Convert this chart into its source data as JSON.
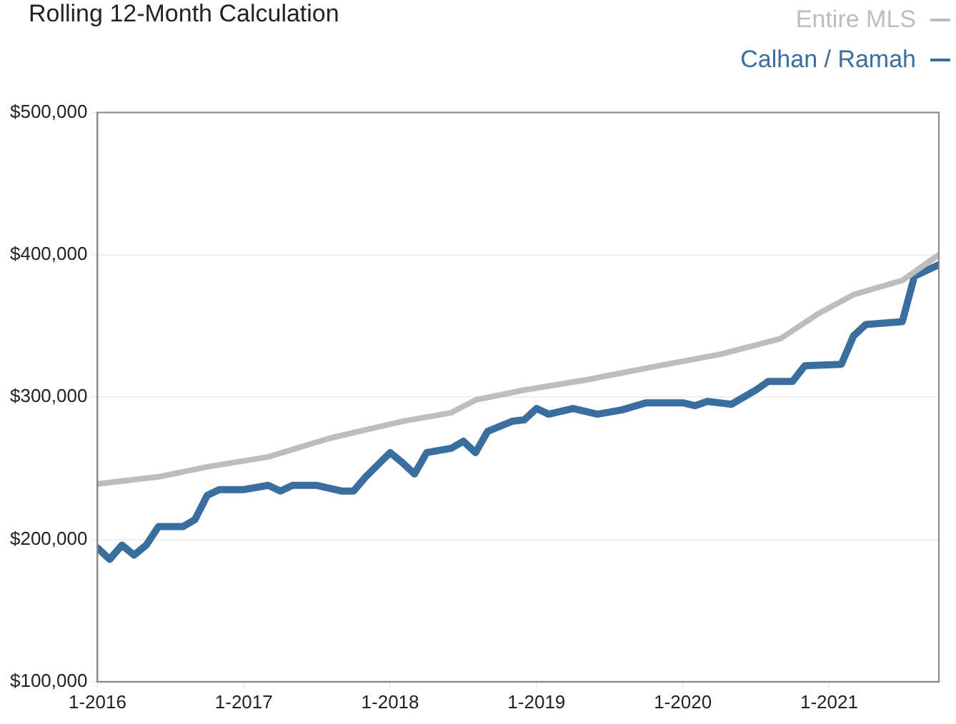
{
  "chart_data": {
    "type": "line",
    "title": "Rolling 12-Month Calculation",
    "xlim": [
      "2016-01",
      "2021-10"
    ],
    "xticks": [
      {
        "value": "2016-01",
        "label": "1-2016"
      },
      {
        "value": "2017-01",
        "label": "1-2017"
      },
      {
        "value": "2018-01",
        "label": "1-2018"
      },
      {
        "value": "2019-01",
        "label": "1-2019"
      },
      {
        "value": "2020-01",
        "label": "1-2020"
      },
      {
        "value": "2021-01",
        "label": "1-2021"
      }
    ],
    "ylim": [
      100000,
      500000
    ],
    "yticks": [
      {
        "value": 100000,
        "label": "$100,000"
      },
      {
        "value": 200000,
        "label": "$200,000"
      },
      {
        "value": 300000,
        "label": "$300,000"
      },
      {
        "value": 400000,
        "label": "$400,000"
      },
      {
        "value": 500000,
        "label": "$500,000"
      }
    ],
    "grid": "y",
    "legend": "top right",
    "marker": "none",
    "line_style": "solid",
    "series": [
      {
        "name": "Entire MLS",
        "color": "#bdbdbd",
        "x": [
          "2016-01",
          "2016-06",
          "2016-10",
          "2017-03",
          "2017-08",
          "2018-02",
          "2018-06",
          "2018-08",
          "2018-12",
          "2019-05",
          "2019-11",
          "2020-04",
          "2020-09",
          "2020-12",
          "2021-03",
          "2021-07",
          "2021-10"
        ],
        "values": [
          239000,
          244000,
          251000,
          258000,
          271000,
          283000,
          289000,
          298000,
          305000,
          312000,
          322000,
          330000,
          341000,
          358000,
          372000,
          382000,
          400000
        ]
      },
      {
        "name": "Calhan / Ramah",
        "color": "#3a6e9e",
        "x": [
          "2016-01",
          "2016-02",
          "2016-03",
          "2016-04",
          "2016-05",
          "2016-06",
          "2016-08",
          "2016-09",
          "2016-10",
          "2016-11",
          "2017-01",
          "2017-03",
          "2017-04",
          "2017-05",
          "2017-07",
          "2017-09",
          "2017-10",
          "2017-11",
          "2018-01",
          "2018-02",
          "2018-03",
          "2018-04",
          "2018-06",
          "2018-07",
          "2018-08",
          "2018-09",
          "2018-11",
          "2018-12",
          "2019-01",
          "2019-02",
          "2019-04",
          "2019-06",
          "2019-08",
          "2019-10",
          "2020-01",
          "2020-02",
          "2020-03",
          "2020-05",
          "2020-07",
          "2020-08",
          "2020-10",
          "2020-11",
          "2021-02",
          "2021-03",
          "2021-04",
          "2021-07",
          "2021-08",
          "2021-10"
        ],
        "values": [
          194000,
          186000,
          196000,
          189000,
          196000,
          209000,
          209000,
          214000,
          231000,
          235000,
          235000,
          238000,
          234000,
          238000,
          238000,
          234000,
          234000,
          244000,
          261000,
          254000,
          246000,
          261000,
          264000,
          269000,
          261000,
          276000,
          283000,
          284000,
          292000,
          288000,
          292000,
          288000,
          291000,
          296000,
          296000,
          294000,
          297000,
          295000,
          305000,
          311000,
          311000,
          322000,
          323000,
          343000,
          351000,
          353000,
          385000,
          393000
        ]
      }
    ]
  }
}
